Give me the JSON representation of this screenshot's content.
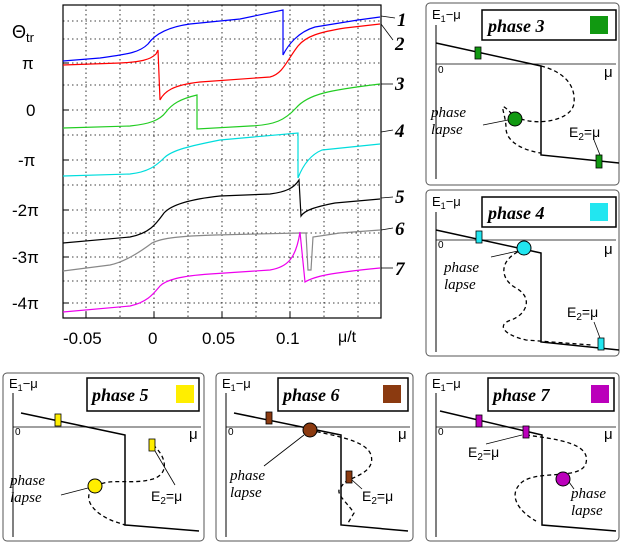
{
  "main_plot": {
    "y_axis_label": "Θ",
    "y_axis_label_sub": "tr",
    "x_axis_label": "μ/t",
    "y_ticks": [
      "π",
      "0",
      "-π",
      "-2π",
      "-3π",
      "-4π"
    ],
    "x_ticks": [
      "-0.05",
      "0",
      "0.05",
      "0.1"
    ],
    "curve_labels": [
      "1",
      "2",
      "3",
      "4",
      "5",
      "6",
      "7"
    ],
    "curve_colors": [
      "#0000ff",
      "#ff0000",
      "#00cc00",
      "#00dddd",
      "#000000",
      "#888888",
      "#ee00ee"
    ]
  },
  "panels": [
    {
      "id": "phase3",
      "title": "phase 3",
      "color": "#119911",
      "axis_e": "E",
      "axis_e_sub": "1",
      "axis_mu_suffix": "−μ",
      "zero": "0",
      "mu": "μ",
      "phase_lapse_1": "phase",
      "phase_lapse_2": "lapse",
      "e2": "E",
      "e2_sub": "2",
      "e2_suffix": "=μ"
    },
    {
      "id": "phase4",
      "title": "phase 4",
      "color": "#22e6f0",
      "axis_e": "E",
      "axis_e_sub": "1",
      "axis_mu_suffix": "−μ",
      "zero": "0",
      "mu": "μ",
      "phase_lapse_1": "phase",
      "phase_lapse_2": "lapse",
      "e2": "E",
      "e2_sub": "2",
      "e2_suffix": "=μ"
    },
    {
      "id": "phase5",
      "title": "phase 5",
      "color": "#ffee00",
      "axis_e": "E",
      "axis_e_sub": "1",
      "axis_mu_suffix": "−μ",
      "zero": "0",
      "mu": "μ",
      "phase_lapse_1": "phase",
      "phase_lapse_2": "lapse",
      "e2": "E",
      "e2_sub": "2",
      "e2_suffix": "=μ"
    },
    {
      "id": "phase6",
      "title": "phase 6",
      "color": "#8b3a10",
      "axis_e": "E",
      "axis_e_sub": "1",
      "axis_mu_suffix": "−μ",
      "zero": "0",
      "mu": "μ",
      "phase_lapse_1": "phase",
      "phase_lapse_2": "lapse",
      "e2": "E",
      "e2_sub": "2",
      "e2_suffix": "=μ"
    },
    {
      "id": "phase7",
      "title": "phase 7",
      "color": "#bb00bb",
      "axis_e": "E",
      "axis_e_sub": "1",
      "axis_mu_suffix": "−μ",
      "zero": "0",
      "mu": "μ",
      "phase_lapse_1": "phase",
      "phase_lapse_2": "lapse",
      "e2": "E",
      "e2_sub": "2",
      "e2_suffix": "=μ"
    }
  ]
}
